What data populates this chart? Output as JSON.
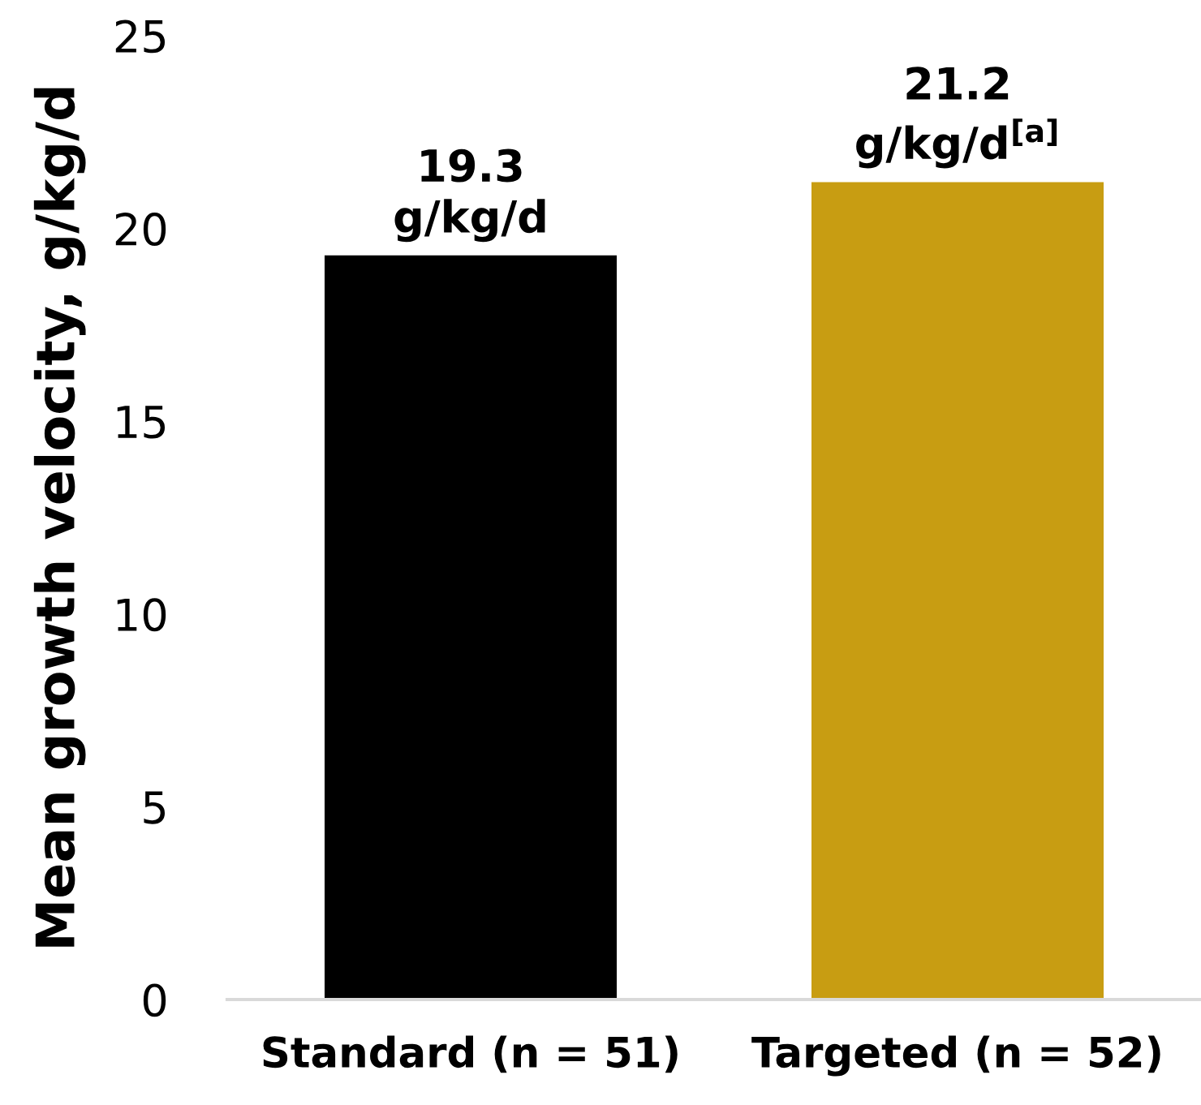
{
  "chart_data": {
    "type": "bar",
    "ylabel": "Mean growth velocity, g/kg/d",
    "categories": [
      "Standard (n = 51)",
      "Targeted (n = 52)"
    ],
    "values": [
      19.3,
      21.2
    ],
    "colors": [
      "#000000",
      "#c89d12"
    ],
    "value_labels": [
      "19.3\ng/kg/d",
      "21.2\ng/kg/d$^{[a]}$"
    ],
    "ylim": [
      0,
      25
    ],
    "yticks": [
      0,
      5,
      10,
      15,
      20,
      25
    ]
  }
}
